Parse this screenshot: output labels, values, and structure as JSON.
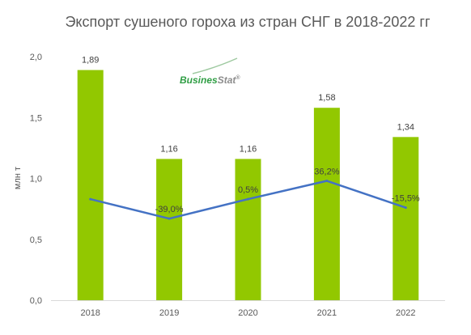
{
  "chart_data": {
    "type": "bar",
    "title": "Экспорт сушеного гороха из стран СНГ в 2018-2022 гг",
    "ylabel": "млн т",
    "xlabel": "",
    "categories": [
      "2018",
      "2019",
      "2020",
      "2021",
      "2022"
    ],
    "values": [
      1.89,
      1.16,
      1.16,
      1.58,
      1.34
    ],
    "value_labels": [
      "1,89",
      "1,16",
      "1,16",
      "1,58",
      "1,34"
    ],
    "ylim": [
      0,
      2.0
    ],
    "yticks": [
      0,
      0.5,
      1.0,
      1.5,
      2.0
    ],
    "ytick_labels": [
      "0,0",
      "0,5",
      "1,0",
      "1,5",
      "2,0"
    ],
    "grid": false,
    "bar_color": "#92c800",
    "line_series": {
      "color": "#4472c4",
      "values_on_left_axis": [
        0.83,
        0.67,
        0.83,
        0.98,
        0.76
      ],
      "labels": [
        "",
        "-39,0%",
        "0,5%",
        "36,2%",
        "-15,5%"
      ]
    }
  },
  "logo": {
    "text_green": "Busines",
    "text_gray": "Stat",
    "mark": "®"
  }
}
